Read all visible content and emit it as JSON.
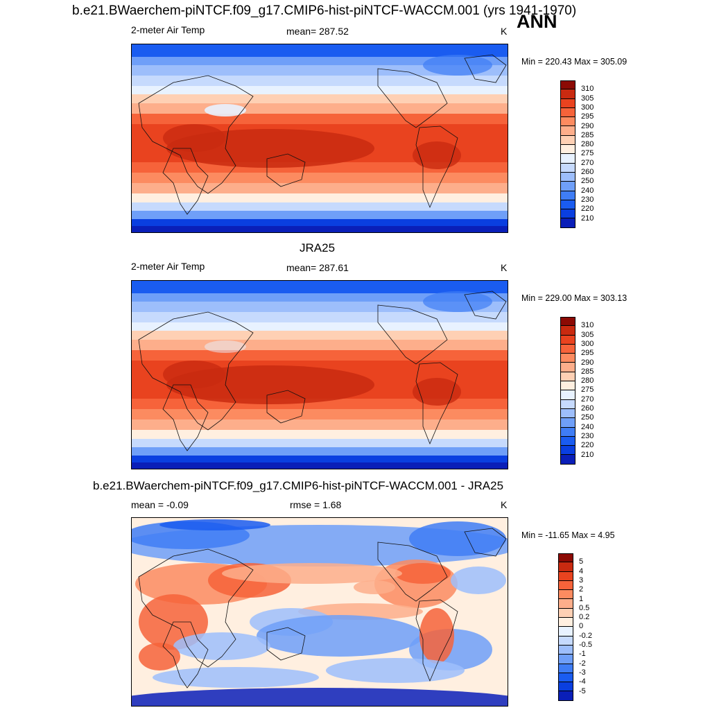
{
  "figure": {
    "main_title": "b.e21.BWaerchem-piNTCF.f09_g17.CMIP6-hist-piNTCF-WACCM.001 (yrs 1941-1970)",
    "season": "ANN",
    "colors": {
      "temp_scale": [
        "#08008a",
        "#0a1fb8",
        "#0a3fe0",
        "#1a5cf0",
        "#3f7df5",
        "#6f9ff8",
        "#9dbefb",
        "#c6dafd",
        "#e8f2ff",
        "#ffefe0",
        "#fed0b4",
        "#fdae8b",
        "#fc8b60",
        "#f6633a",
        "#e9431f",
        "#c92a10",
        "#8c0a04"
      ]
    }
  },
  "panels": [
    {
      "id": "model",
      "title": "",
      "left_label": "2-meter Air Temp",
      "center_label": "mean= 287.52",
      "units": "K",
      "minmax": "Min = 220.43 Max = 305.09",
      "colorbar_labels": [
        "310",
        "305",
        "300",
        "295",
        "290",
        "285",
        "280",
        "275",
        "270",
        "260",
        "250",
        "240",
        "230",
        "220",
        "210"
      ]
    },
    {
      "id": "obs",
      "title": "JRA25",
      "left_label": "2-meter Air Temp",
      "center_label": "mean= 287.61",
      "units": "K",
      "minmax": "Min = 229.00 Max = 303.13",
      "colorbar_labels": [
        "310",
        "305",
        "300",
        "295",
        "290",
        "285",
        "280",
        "275",
        "270",
        "260",
        "250",
        "240",
        "230",
        "220",
        "210"
      ]
    },
    {
      "id": "diff",
      "title": "b.e21.BWaerchem-piNTCF.f09_g17.CMIP6-hist-piNTCF-WACCM.001 - JRA25",
      "left_label": "mean =  -0.09",
      "center_label": "rmse =   1.68",
      "units": "K",
      "minmax": "Min = -11.65 Max =   4.95",
      "colorbar_labels": [
        "5",
        "4",
        "3",
        "2",
        "1",
        "0.5",
        "0.2",
        "0",
        "-0.2",
        "-0.5",
        "-1",
        "-2",
        "-3",
        "-4",
        "-5"
      ]
    }
  ]
}
